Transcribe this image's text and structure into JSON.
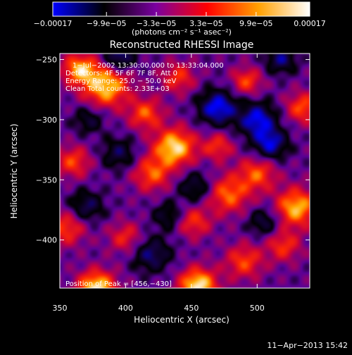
{
  "chart_data": {
    "type": "heatmap",
    "title": "Reconstructed RHESSI Image",
    "xlabel": "Heliocentric X (arcsec)",
    "ylabel": "Heliocentric Y (arcsec)",
    "xlim": [
      350,
      540
    ],
    "ylim": [
      -440,
      -245
    ],
    "x_ticks": [
      {
        "value": 350,
        "label": "350"
      },
      {
        "value": 400,
        "label": "400"
      },
      {
        "value": 450,
        "label": "450"
      },
      {
        "value": 500,
        "label": "500"
      }
    ],
    "y_ticks": [
      {
        "value": -250,
        "label": "−250"
      },
      {
        "value": -300,
        "label": "−300"
      },
      {
        "value": -350,
        "label": "−350"
      },
      {
        "value": -400,
        "label": "−400"
      }
    ],
    "colorbar": {
      "ticks": [
        {
          "value": -0.00017,
          "label": "−0.00017"
        },
        {
          "value": -9.9e-05,
          "label": "−9.9e−05"
        },
        {
          "value": -3.3e-05,
          "label": "−3.3e−05"
        },
        {
          "value": 3.3e-05,
          "label": "3.3e−05"
        },
        {
          "value": 9.9e-05,
          "label": "9.9e−05"
        },
        {
          "value": 0.00017,
          "label": "0.00017"
        }
      ],
      "range": [
        -0.00017,
        0.00017
      ],
      "units_label": "(photons cm⁻² s⁻¹ asec⁻²)",
      "colors": [
        "#0000ff",
        "#000000",
        "#7a00a0",
        "#ff0000",
        "#ffa000",
        "#ffffff"
      ]
    },
    "annotations": {
      "time_range": "1−Jul−2002 13:30:00.000 to 13:33:04.000",
      "detectors": "Detectors: 4F 5F 6F 7F 8F, Att 0",
      "energy_range": "Energy Range: 25.0 − 50.0 keV",
      "method": "Clean    Total counts: 2.33E+03",
      "peak": "Position of Peak = [456,−430]"
    },
    "footer_date": "11−Apr−2013 15:42",
    "blobs": [
      {
        "x": 378,
        "y": -440,
        "a": 1.0,
        "s": 10
      },
      {
        "x": 455,
        "y": -438,
        "a": 1.0,
        "s": 10
      },
      {
        "x": 385,
        "y": -272,
        "a": 0.9,
        "s": 12
      },
      {
        "x": 365,
        "y": -258,
        "a": 0.8,
        "s": 9
      },
      {
        "x": 437,
        "y": -323,
        "a": 0.95,
        "s": 11
      },
      {
        "x": 420,
        "y": -345,
        "a": 0.6,
        "s": 10
      },
      {
        "x": 478,
        "y": -362,
        "a": 0.65,
        "s": 11
      },
      {
        "x": 500,
        "y": -345,
        "a": 0.6,
        "s": 10
      },
      {
        "x": 530,
        "y": -373,
        "a": 0.85,
        "s": 11
      },
      {
        "x": 415,
        "y": -295,
        "a": 0.6,
        "s": 9
      },
      {
        "x": 360,
        "y": -335,
        "a": 0.55,
        "s": 9
      },
      {
        "x": 355,
        "y": -390,
        "a": 0.55,
        "s": 10
      },
      {
        "x": 490,
        "y": -418,
        "a": 0.55,
        "s": 10
      },
      {
        "x": 535,
        "y": -290,
        "a": 0.6,
        "s": 9
      },
      {
        "x": 492,
        "y": -268,
        "a": 0.55,
        "s": 8
      },
      {
        "x": 440,
        "y": -265,
        "a": 0.5,
        "s": 9
      },
      {
        "x": 470,
        "y": -322,
        "a": 0.5,
        "s": 8
      },
      {
        "x": 400,
        "y": -398,
        "a": 0.45,
        "s": 9
      },
      {
        "x": 452,
        "y": -385,
        "a": 0.5,
        "s": 9
      },
      {
        "x": 520,
        "y": -405,
        "a": 0.5,
        "s": 9
      },
      {
        "x": 470,
        "y": -290,
        "a": -0.8,
        "s": 10
      },
      {
        "x": 500,
        "y": -300,
        "a": -0.75,
        "s": 10
      },
      {
        "x": 510,
        "y": -320,
        "a": -0.7,
        "s": 9
      },
      {
        "x": 395,
        "y": -248,
        "a": -0.65,
        "s": 8
      },
      {
        "x": 420,
        "y": -412,
        "a": -0.55,
        "s": 10
      },
      {
        "x": 370,
        "y": -372,
        "a": -0.5,
        "s": 9
      },
      {
        "x": 453,
        "y": -356,
        "a": -0.45,
        "s": 9
      },
      {
        "x": 395,
        "y": -328,
        "a": -0.45,
        "s": 9
      },
      {
        "x": 518,
        "y": -250,
        "a": -0.55,
        "s": 8
      },
      {
        "x": 505,
        "y": -385,
        "a": -0.45,
        "s": 8
      },
      {
        "x": 372,
        "y": -300,
        "a": -0.4,
        "s": 8
      },
      {
        "x": 432,
        "y": -380,
        "a": -0.4,
        "s": 8
      }
    ]
  }
}
